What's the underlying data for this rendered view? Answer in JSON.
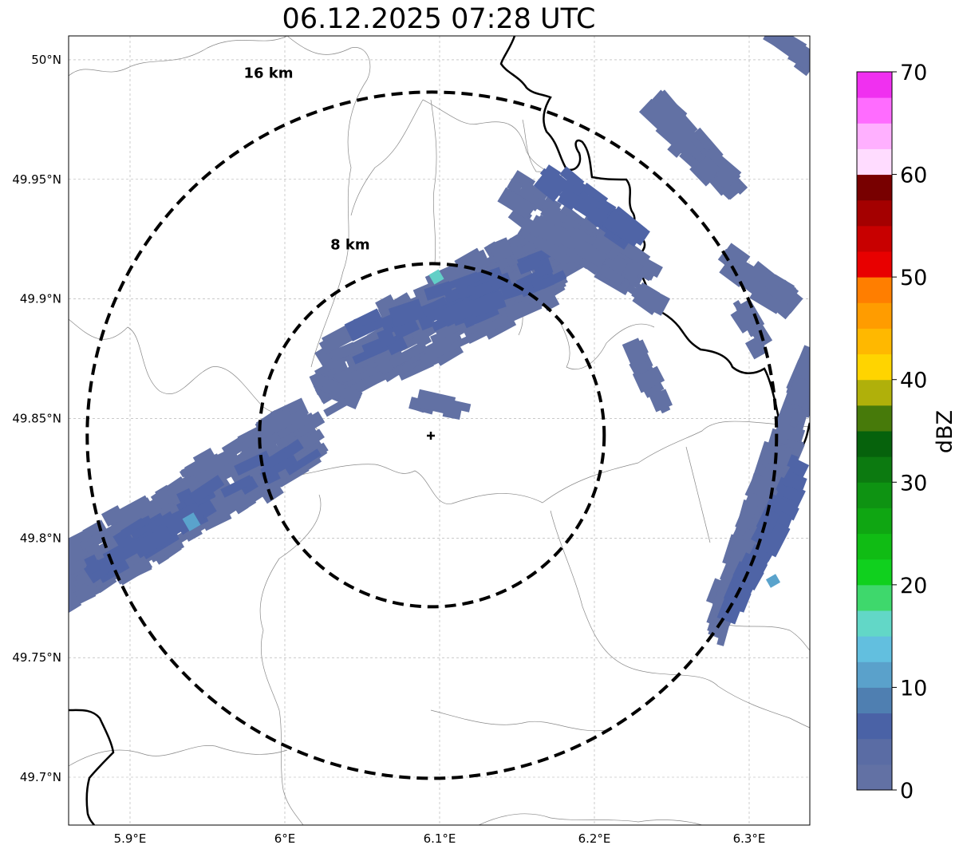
{
  "title": "06.12.2025 07:28 UTC",
  "map": {
    "lon_range": [
      5.86,
      6.34
    ],
    "lat_range": [
      49.68,
      50.01
    ],
    "center": {
      "lon": 6.095,
      "lat": 49.843
    },
    "lon_ticks": [
      {
        "value": 5.9,
        "label": "5.9°E"
      },
      {
        "value": 6.0,
        "label": "6°E"
      },
      {
        "value": 6.1,
        "label": "6.1°E"
      },
      {
        "value": 6.2,
        "label": "6.2°E"
      },
      {
        "value": 6.3,
        "label": "6.3°E"
      }
    ],
    "lat_ticks": [
      {
        "value": 49.7,
        "label": "49.7°N"
      },
      {
        "value": 49.75,
        "label": "49.75°N"
      },
      {
        "value": 49.8,
        "label": "49.8°N"
      },
      {
        "value": 49.85,
        "label": "49.85°N"
      },
      {
        "value": 49.9,
        "label": "49.9°N"
      },
      {
        "value": 49.95,
        "label": "49.95°N"
      },
      {
        "value": 50.0,
        "label": "50°N"
      }
    ],
    "range_rings": [
      {
        "km": 8,
        "label": "8 km"
      },
      {
        "km": 16,
        "label": "16 km"
      }
    ],
    "grid": true
  },
  "colorbar": {
    "label": "dBZ",
    "min": 0,
    "max": 70,
    "step": 2.5,
    "ticks": [
      "0",
      "10",
      "20",
      "30",
      "40",
      "50",
      "60",
      "70"
    ],
    "colors": [
      "#6271a4",
      "#5a6ca4",
      "#4a62a6",
      "#4f7fb1",
      "#5aa1cb",
      "#62bfdf",
      "#62d7c7",
      "#3ed86c",
      "#10d01e",
      "#10bc14",
      "#0fa612",
      "#0e9312",
      "#0c7a10",
      "#06620c",
      "#477a0a",
      "#b0b00a",
      "#ffd400",
      "#ffb800",
      "#ff9c00",
      "#ff7e00",
      "#e80000",
      "#c80000",
      "#a40000",
      "#780000",
      "#ffdcff",
      "#ffb0ff",
      "#ff6cff",
      "#f030f0"
    ]
  },
  "echo_colors": {
    "base": "#6271a4",
    "dark": "#4f64a6",
    "light": "#5aa3cc",
    "cyan": "#62cfc7"
  }
}
